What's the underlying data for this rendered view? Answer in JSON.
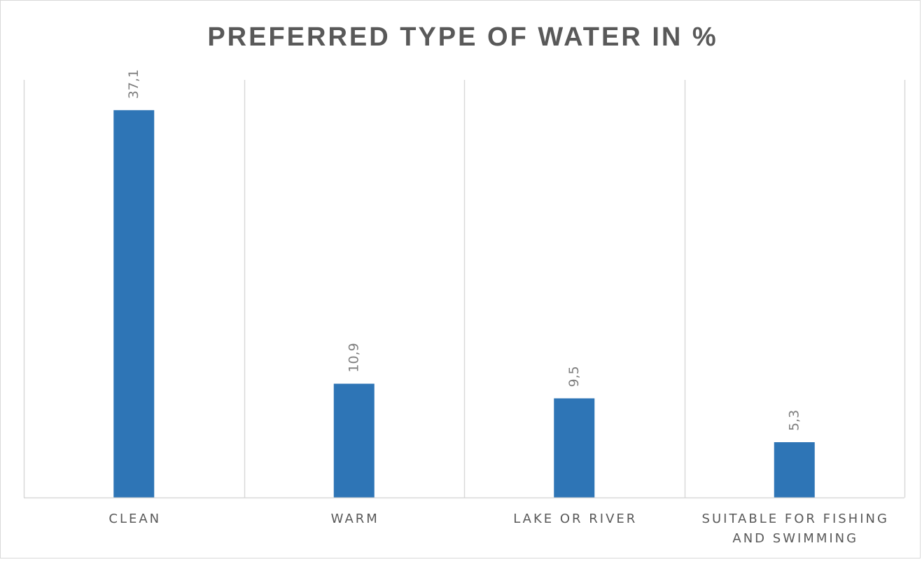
{
  "chart_data": {
    "type": "bar",
    "title": "PREFERRED TYPE OF WATER IN %",
    "categories": [
      "CLEAN",
      "WARM",
      "LAKE OR RIVER",
      "SUITABLE FOR FISHING AND SWIMMING"
    ],
    "category_lines": [
      [
        "CLEAN"
      ],
      [
        "WARM"
      ],
      [
        "LAKE OR RIVER"
      ],
      [
        "SUITABLE FOR FISHING",
        "AND SWIMMING"
      ]
    ],
    "values": [
      37.1,
      10.9,
      9.5,
      5.3
    ],
    "data_labels": [
      "37,1",
      "10,9",
      "9,5",
      "5,3"
    ],
    "xlabel": "",
    "ylabel": "",
    "ylim": [
      0,
      40
    ],
    "grid": "vertical category separators",
    "legend": "none",
    "bar_color": "#2e75b6"
  }
}
